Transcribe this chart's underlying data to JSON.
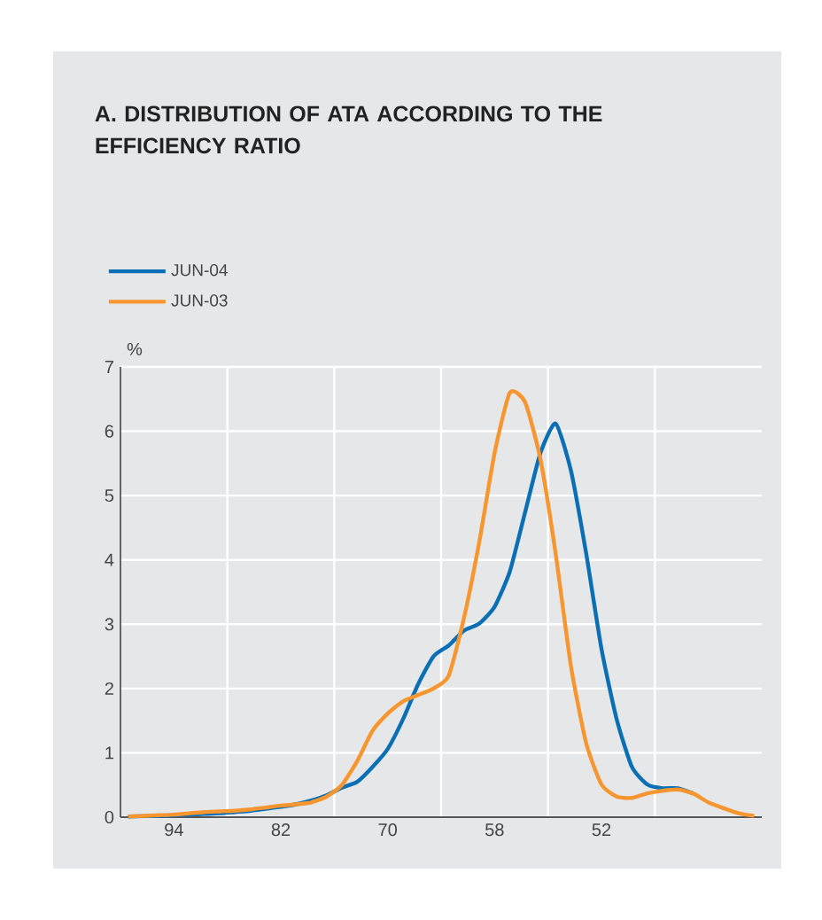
{
  "chart_data": {
    "type": "line",
    "title": "A. DISTRIBUTION OF ATA ACCORDING TO THE EFFICIENCY RATIO",
    "ylabel": "%",
    "categories": [
      null,
      null,
      null,
      "94",
      null,
      null,
      null,
      null,
      null,
      null,
      "82",
      null,
      null,
      null,
      null,
      null,
      null,
      "70",
      null,
      null,
      null,
      null,
      null,
      null,
      "58",
      null,
      null,
      null,
      null,
      null,
      null,
      "52",
      null,
      null,
      null,
      null,
      null,
      null,
      null,
      null,
      null,
      null
    ],
    "series": [
      {
        "name": "JUN-04",
        "color": "#0a6fb5",
        "values": [
          0.01,
          null,
          0.02,
          0.03,
          0.04,
          0.05,
          0.06,
          0.08,
          0.1,
          0.13,
          0.16,
          0.2,
          0.26,
          0.34,
          0.46,
          0.55,
          0.78,
          1.06,
          1.52,
          2.07,
          2.5,
          2.67,
          2.9,
          3.01,
          3.27,
          3.82,
          4.74,
          5.66,
          6.12,
          5.39,
          4.1,
          2.62,
          1.52,
          0.78,
          0.51,
          0.45,
          0.45,
          0.37,
          null,
          null,
          null,
          null
        ]
      },
      {
        "name": "JUN-03",
        "color": "#f7962f",
        "values": [
          0.01,
          0.02,
          0.03,
          0.04,
          0.06,
          0.08,
          0.09,
          0.1,
          0.12,
          0.15,
          0.18,
          0.2,
          0.23,
          0.32,
          0.5,
          0.87,
          1.34,
          1.61,
          1.8,
          1.9,
          2.0,
          2.2,
          3.1,
          4.28,
          5.66,
          6.6,
          6.45,
          5.57,
          4.1,
          2.35,
          1.15,
          0.51,
          0.32,
          0.3,
          0.37,
          0.41,
          0.43,
          0.37,
          0.23,
          0.14,
          0.06,
          0.02
        ]
      }
    ],
    "ylim": [
      0,
      7
    ],
    "yticks": [
      0,
      1,
      2,
      3,
      4,
      5,
      6,
      7
    ],
    "grid": true,
    "legend": "top left"
  }
}
